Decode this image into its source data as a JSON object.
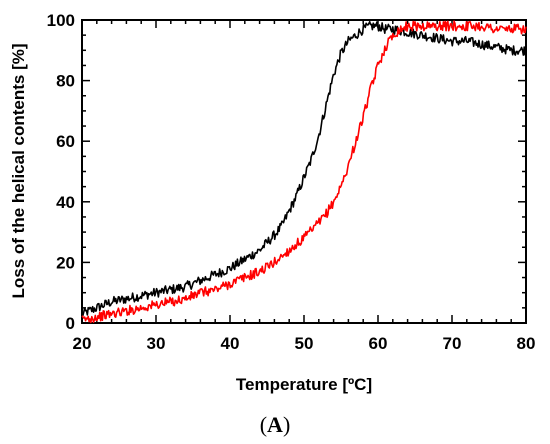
{
  "caption": {
    "open": "(",
    "letter": "A",
    "close": ")"
  },
  "chart_data": {
    "type": "line",
    "title": "",
    "xlabel": "Temperature [ºC]",
    "ylabel": "Loss of the helical contents [%]",
    "xlim": [
      20,
      80
    ],
    "ylim": [
      0,
      100
    ],
    "x_ticks": [
      20,
      30,
      40,
      50,
      60,
      70,
      80
    ],
    "y_ticks": [
      0,
      20,
      40,
      60,
      80,
      100
    ],
    "grid": false,
    "legend": "none",
    "series": [
      {
        "color": "#000000",
        "points": [
          [
            20,
            3
          ],
          [
            22,
            5
          ],
          [
            24,
            7
          ],
          [
            26,
            8
          ],
          [
            28,
            9
          ],
          [
            30,
            10
          ],
          [
            32,
            11
          ],
          [
            34,
            12
          ],
          [
            36,
            14
          ],
          [
            38,
            16
          ],
          [
            40,
            18
          ],
          [
            42,
            21
          ],
          [
            44,
            24
          ],
          [
            46,
            29
          ],
          [
            47,
            32
          ],
          [
            48,
            37
          ],
          [
            49,
            42
          ],
          [
            50,
            48
          ],
          [
            51,
            54
          ],
          [
            52,
            62
          ],
          [
            53,
            72
          ],
          [
            54,
            82
          ],
          [
            55,
            89
          ],
          [
            56,
            93
          ],
          [
            57,
            95
          ],
          [
            58,
            97
          ],
          [
            59,
            98
          ],
          [
            60,
            98
          ],
          [
            61,
            97
          ],
          [
            62,
            97
          ],
          [
            64,
            96
          ],
          [
            66,
            95
          ],
          [
            68,
            94
          ],
          [
            70,
            93
          ],
          [
            72,
            93
          ],
          [
            74,
            92
          ],
          [
            76,
            91
          ],
          [
            78,
            90
          ],
          [
            80,
            90
          ]
        ]
      },
      {
        "color": "#ff0000",
        "points": [
          [
            20,
            1
          ],
          [
            22,
            2
          ],
          [
            24,
            3
          ],
          [
            26,
            4
          ],
          [
            28,
            5
          ],
          [
            30,
            6
          ],
          [
            32,
            7
          ],
          [
            34,
            8
          ],
          [
            36,
            10
          ],
          [
            38,
            11
          ],
          [
            40,
            13
          ],
          [
            42,
            15
          ],
          [
            44,
            17
          ],
          [
            46,
            20
          ],
          [
            48,
            24
          ],
          [
            50,
            28
          ],
          [
            52,
            33
          ],
          [
            53,
            36
          ],
          [
            54,
            40
          ],
          [
            55,
            45
          ],
          [
            56,
            52
          ],
          [
            57,
            60
          ],
          [
            58,
            68
          ],
          [
            59,
            77
          ],
          [
            60,
            85
          ],
          [
            61,
            91
          ],
          [
            62,
            95
          ],
          [
            63,
            97
          ],
          [
            64,
            98
          ],
          [
            66,
            98
          ],
          [
            68,
            98
          ],
          [
            70,
            98
          ],
          [
            72,
            98
          ],
          [
            74,
            98
          ],
          [
            76,
            97
          ],
          [
            78,
            97
          ],
          [
            80,
            97
          ]
        ]
      }
    ]
  }
}
